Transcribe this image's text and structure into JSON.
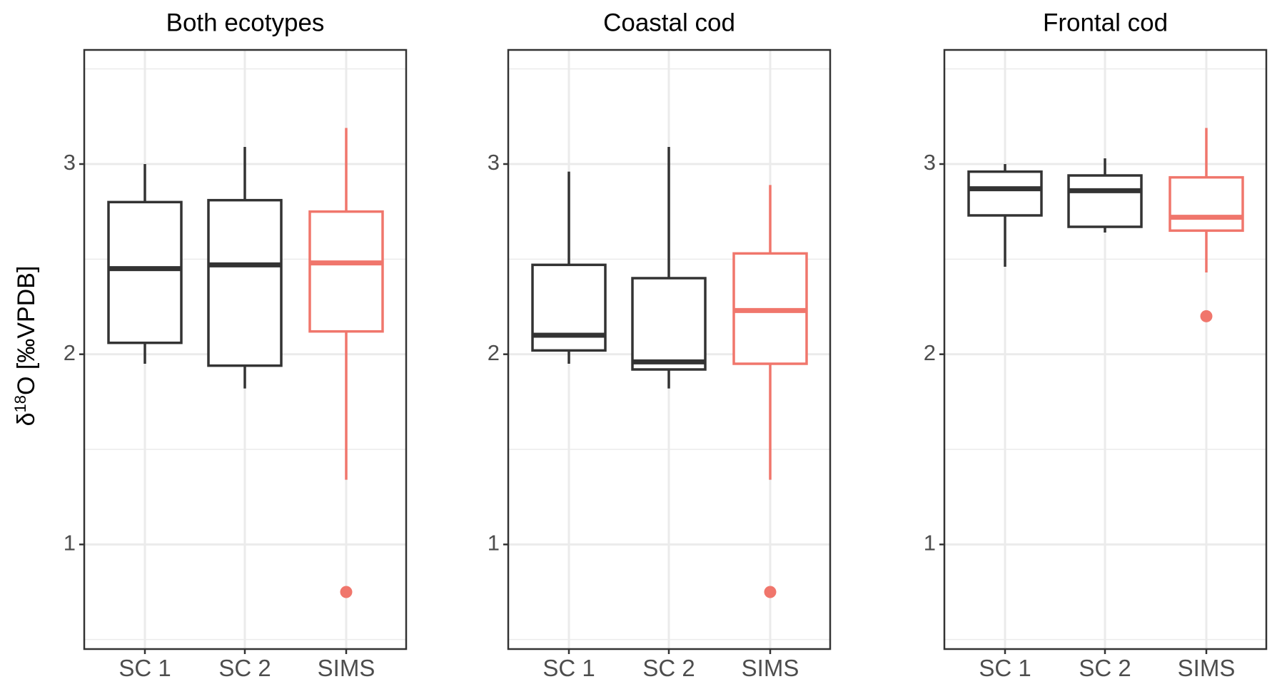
{
  "colors": {
    "standard": "#333333",
    "sims": "#f0766c",
    "grid": "#ebebeb",
    "panel_border": "#333333",
    "tick_text": "#4d4d4d"
  },
  "chart_data": {
    "type": "boxplot",
    "ylabel": "δ18O [‰VPDB]",
    "ylabel_parts": {
      "base": "δ",
      "sup": "18",
      "rest": "O [‰VPDB]"
    },
    "ylim": [
      0.45,
      3.6
    ],
    "yticks": [
      1,
      2,
      3
    ],
    "grid": true,
    "categories": [
      "SC 1",
      "SC 2",
      "SIMS"
    ],
    "panels": [
      {
        "title": "Both ecotypes",
        "boxes": [
          {
            "category": "SC 1",
            "whisker_low": 1.95,
            "q1": 2.06,
            "median": 2.45,
            "q3": 2.8,
            "whisker_high": 3.0,
            "outliers": [],
            "color": "standard"
          },
          {
            "category": "SC 2",
            "whisker_low": 1.82,
            "q1": 1.94,
            "median": 2.47,
            "q3": 2.81,
            "whisker_high": 3.09,
            "outliers": [],
            "color": "standard"
          },
          {
            "category": "SIMS",
            "whisker_low": 1.34,
            "q1": 2.12,
            "median": 2.48,
            "q3": 2.75,
            "whisker_high": 3.19,
            "outliers": [
              0.75
            ],
            "color": "sims"
          }
        ]
      },
      {
        "title": "Coastal cod",
        "boxes": [
          {
            "category": "SC 1",
            "whisker_low": 1.95,
            "q1": 2.02,
            "median": 2.1,
            "q3": 2.47,
            "whisker_high": 2.96,
            "outliers": [],
            "color": "standard"
          },
          {
            "category": "SC 2",
            "whisker_low": 1.82,
            "q1": 1.92,
            "median": 1.96,
            "q3": 2.4,
            "whisker_high": 3.09,
            "outliers": [],
            "color": "standard"
          },
          {
            "category": "SIMS",
            "whisker_low": 1.34,
            "q1": 1.95,
            "median": 2.23,
            "q3": 2.53,
            "whisker_high": 2.89,
            "outliers": [
              0.75
            ],
            "color": "sims"
          }
        ]
      },
      {
        "title": "Frontal cod",
        "boxes": [
          {
            "category": "SC 1",
            "whisker_low": 2.46,
            "q1": 2.73,
            "median": 2.87,
            "q3": 2.96,
            "whisker_high": 3.0,
            "outliers": [],
            "color": "standard"
          },
          {
            "category": "SC 2",
            "whisker_low": 2.64,
            "q1": 2.67,
            "median": 2.86,
            "q3": 2.94,
            "whisker_high": 3.03,
            "outliers": [],
            "color": "standard"
          },
          {
            "category": "SIMS",
            "whisker_low": 2.43,
            "q1": 2.65,
            "median": 2.72,
            "q3": 2.93,
            "whisker_high": 3.19,
            "outliers": [
              2.2
            ],
            "color": "sims"
          }
        ]
      }
    ]
  }
}
